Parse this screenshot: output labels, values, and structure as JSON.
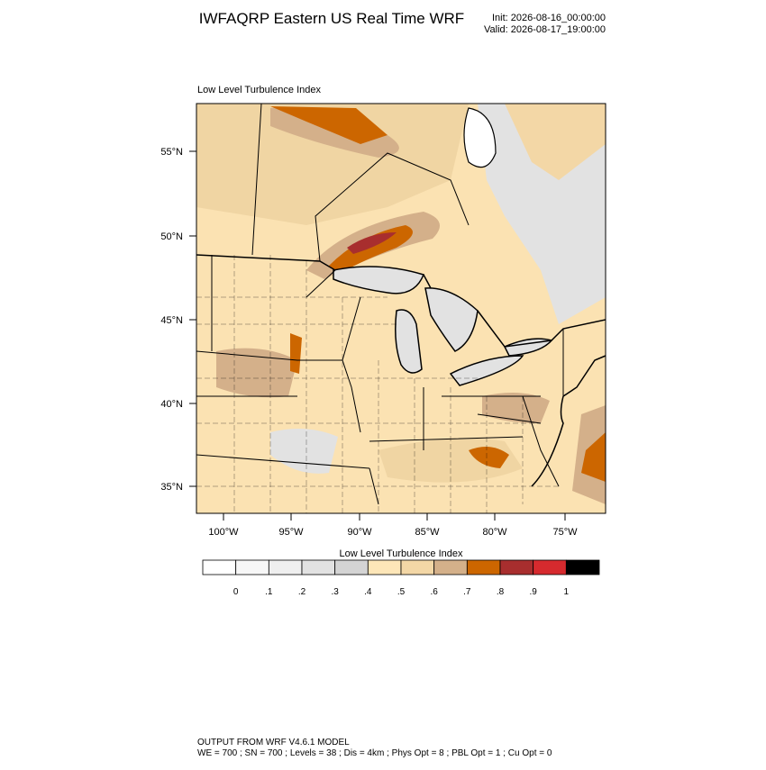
{
  "header": {
    "title": "IWFAQRP Eastern US Real Time WRF",
    "init": "Init: 2026-08-16_00:00:00",
    "valid": "Valid: 2026-08-17_19:00:00"
  },
  "map": {
    "subtitle": "Low Level Turbulence Index",
    "lat_labels": [
      "55°N",
      "50°N",
      "45°N",
      "40°N",
      "35°N"
    ],
    "lon_labels": [
      "100°W",
      "95°W",
      "90°W",
      "85°W",
      "80°W",
      "75°W"
    ]
  },
  "colorbar": {
    "title": "Low Level Turbulence Index",
    "colors": [
      "#ffffff",
      "#f7f7f7",
      "#efefef",
      "#e2e2e2",
      "#d4d4d4",
      "#fde6b8",
      "#f3d7a6",
      "#d4b08a",
      "#cc6600",
      "#a82e2e",
      "#d62a2e",
      "#000000"
    ],
    "labels": [
      "0",
      ".1",
      ".2",
      ".3",
      ".4",
      ".5",
      ".6",
      ".7",
      ".8",
      ".9",
      "1"
    ]
  },
  "footer": {
    "line1": "OUTPUT FROM WRF V4.6.1 MODEL",
    "line2": "WE = 700 ; SN = 700 ; Levels = 38 ; Dis = 4km ; Phys Opt = 8 ; PBL Opt = 1 ; Cu Opt = 0"
  }
}
